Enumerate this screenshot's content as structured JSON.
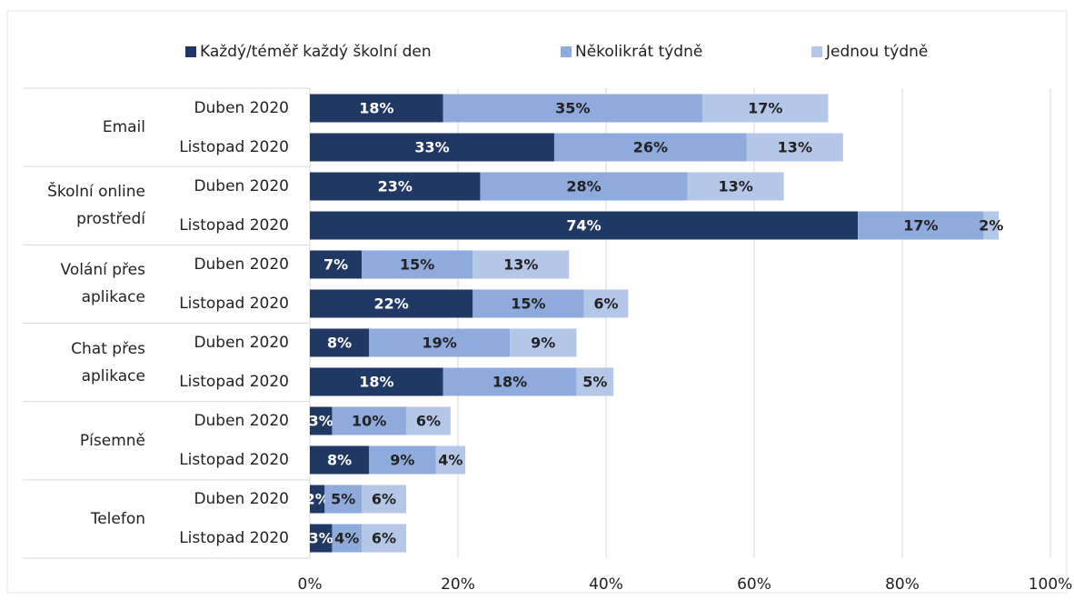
{
  "chart_data": {
    "type": "stacked-barh",
    "groups": [
      "Email",
      "Školní online prostředí",
      "Volání přes aplikace",
      "Chat přes aplikace",
      "Písemně",
      "Telefon"
    ],
    "categories": [
      "Duben 2020",
      "Listopad 2020",
      "Duben 2020",
      "Listopad 2020",
      "Duben 2020",
      "Listopad 2020",
      "Duben 2020",
      "Listopad 2020",
      "Duben 2020",
      "Listopad 2020",
      "Duben 2020",
      "Listopad 2020"
    ],
    "series": [
      {
        "name": "Každý/téměř každý školní den",
        "color": "#203864",
        "values": [
          18,
          33,
          23,
          74,
          7,
          22,
          8,
          18,
          3,
          8,
          2,
          3
        ],
        "value_labels": [
          "18%",
          "33%",
          "23%",
          "74%",
          "7%",
          "22%",
          "8%",
          "18%",
          "3%",
          "8%",
          "2%",
          "3%"
        ]
      },
      {
        "name": "Několikrát týdně",
        "color": "#8faadc",
        "values": [
          35,
          26,
          28,
          17,
          15,
          15,
          19,
          18,
          10,
          9,
          5,
          4
        ],
        "value_labels": [
          "35%",
          "26%",
          "28%",
          "17%",
          "15%",
          "15%",
          "19%",
          "18%",
          "10%",
          "9%",
          "5%",
          "4%"
        ]
      },
      {
        "name": "Jednou týdně",
        "color": "#b4c7e7",
        "values": [
          17,
          13,
          13,
          2,
          13,
          6,
          9,
          5,
          6,
          4,
          6,
          6
        ],
        "value_labels": [
          "17%",
          "13%",
          "13%",
          "2%",
          "13%",
          "6%",
          "9%",
          "5%",
          "6%",
          "4%",
          "6%",
          "6%"
        ]
      }
    ],
    "xlim": [
      0,
      100
    ],
    "xticks": [
      {
        "value": 0,
        "label": "0%"
      },
      {
        "value": 20,
        "label": "20%"
      },
      {
        "value": 40,
        "label": "40%"
      },
      {
        "value": 60,
        "label": "60%"
      },
      {
        "value": 80,
        "label": "80%"
      },
      {
        "value": 100,
        "label": "100%"
      }
    ],
    "grid": true,
    "legend": "top"
  }
}
